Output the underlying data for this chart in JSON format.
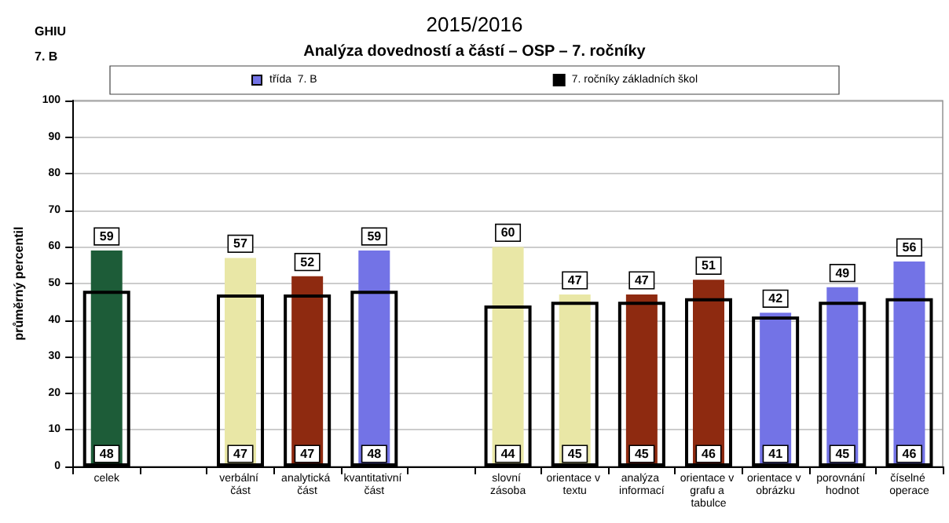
{
  "chart_data": {
    "type": "bar",
    "title": "2015/2016",
    "subtitle": "Analýza dovedností a částí – OSP – 7. ročníky",
    "ylabel": "průměrný percentil",
    "annotations": [
      "GHIU",
      "7. B"
    ],
    "categories": [
      "celek",
      null,
      "verbální část",
      "analytická část",
      "kvantitativní část",
      null,
      "slovní zásoba",
      "orientace v textu",
      "analýza informací",
      "orientace v grafu a tabulce",
      "orientace v obrázku",
      "porovnání hodnot",
      "číselné operace"
    ],
    "series": [
      {
        "name": "třída  7. B",
        "color": "#7373e6",
        "colors": [
          "#1d5c38",
          null,
          "#e9e7a6",
          "#8e2a10",
          "#7373e6",
          null,
          "#e9e7a6",
          "#e9e7a6",
          "#8e2a10",
          "#8e2a10",
          "#7373e6",
          "#7373e6",
          "#7373e6"
        ],
        "values": [
          59,
          null,
          57,
          52,
          59,
          null,
          60,
          47,
          47,
          51,
          42,
          49,
          56
        ]
      },
      {
        "name": "7. ročníky základních škol",
        "color": "#000000",
        "values": [
          48,
          null,
          47,
          47,
          48,
          null,
          44,
          45,
          45,
          46,
          41,
          45,
          46
        ]
      }
    ],
    "ylim": [
      0,
      100
    ],
    "yticks": [
      0,
      10,
      20,
      30,
      40,
      50,
      60,
      70,
      80,
      90,
      100
    ],
    "grid": "y",
    "legend": "top",
    "data_labels": true
  }
}
